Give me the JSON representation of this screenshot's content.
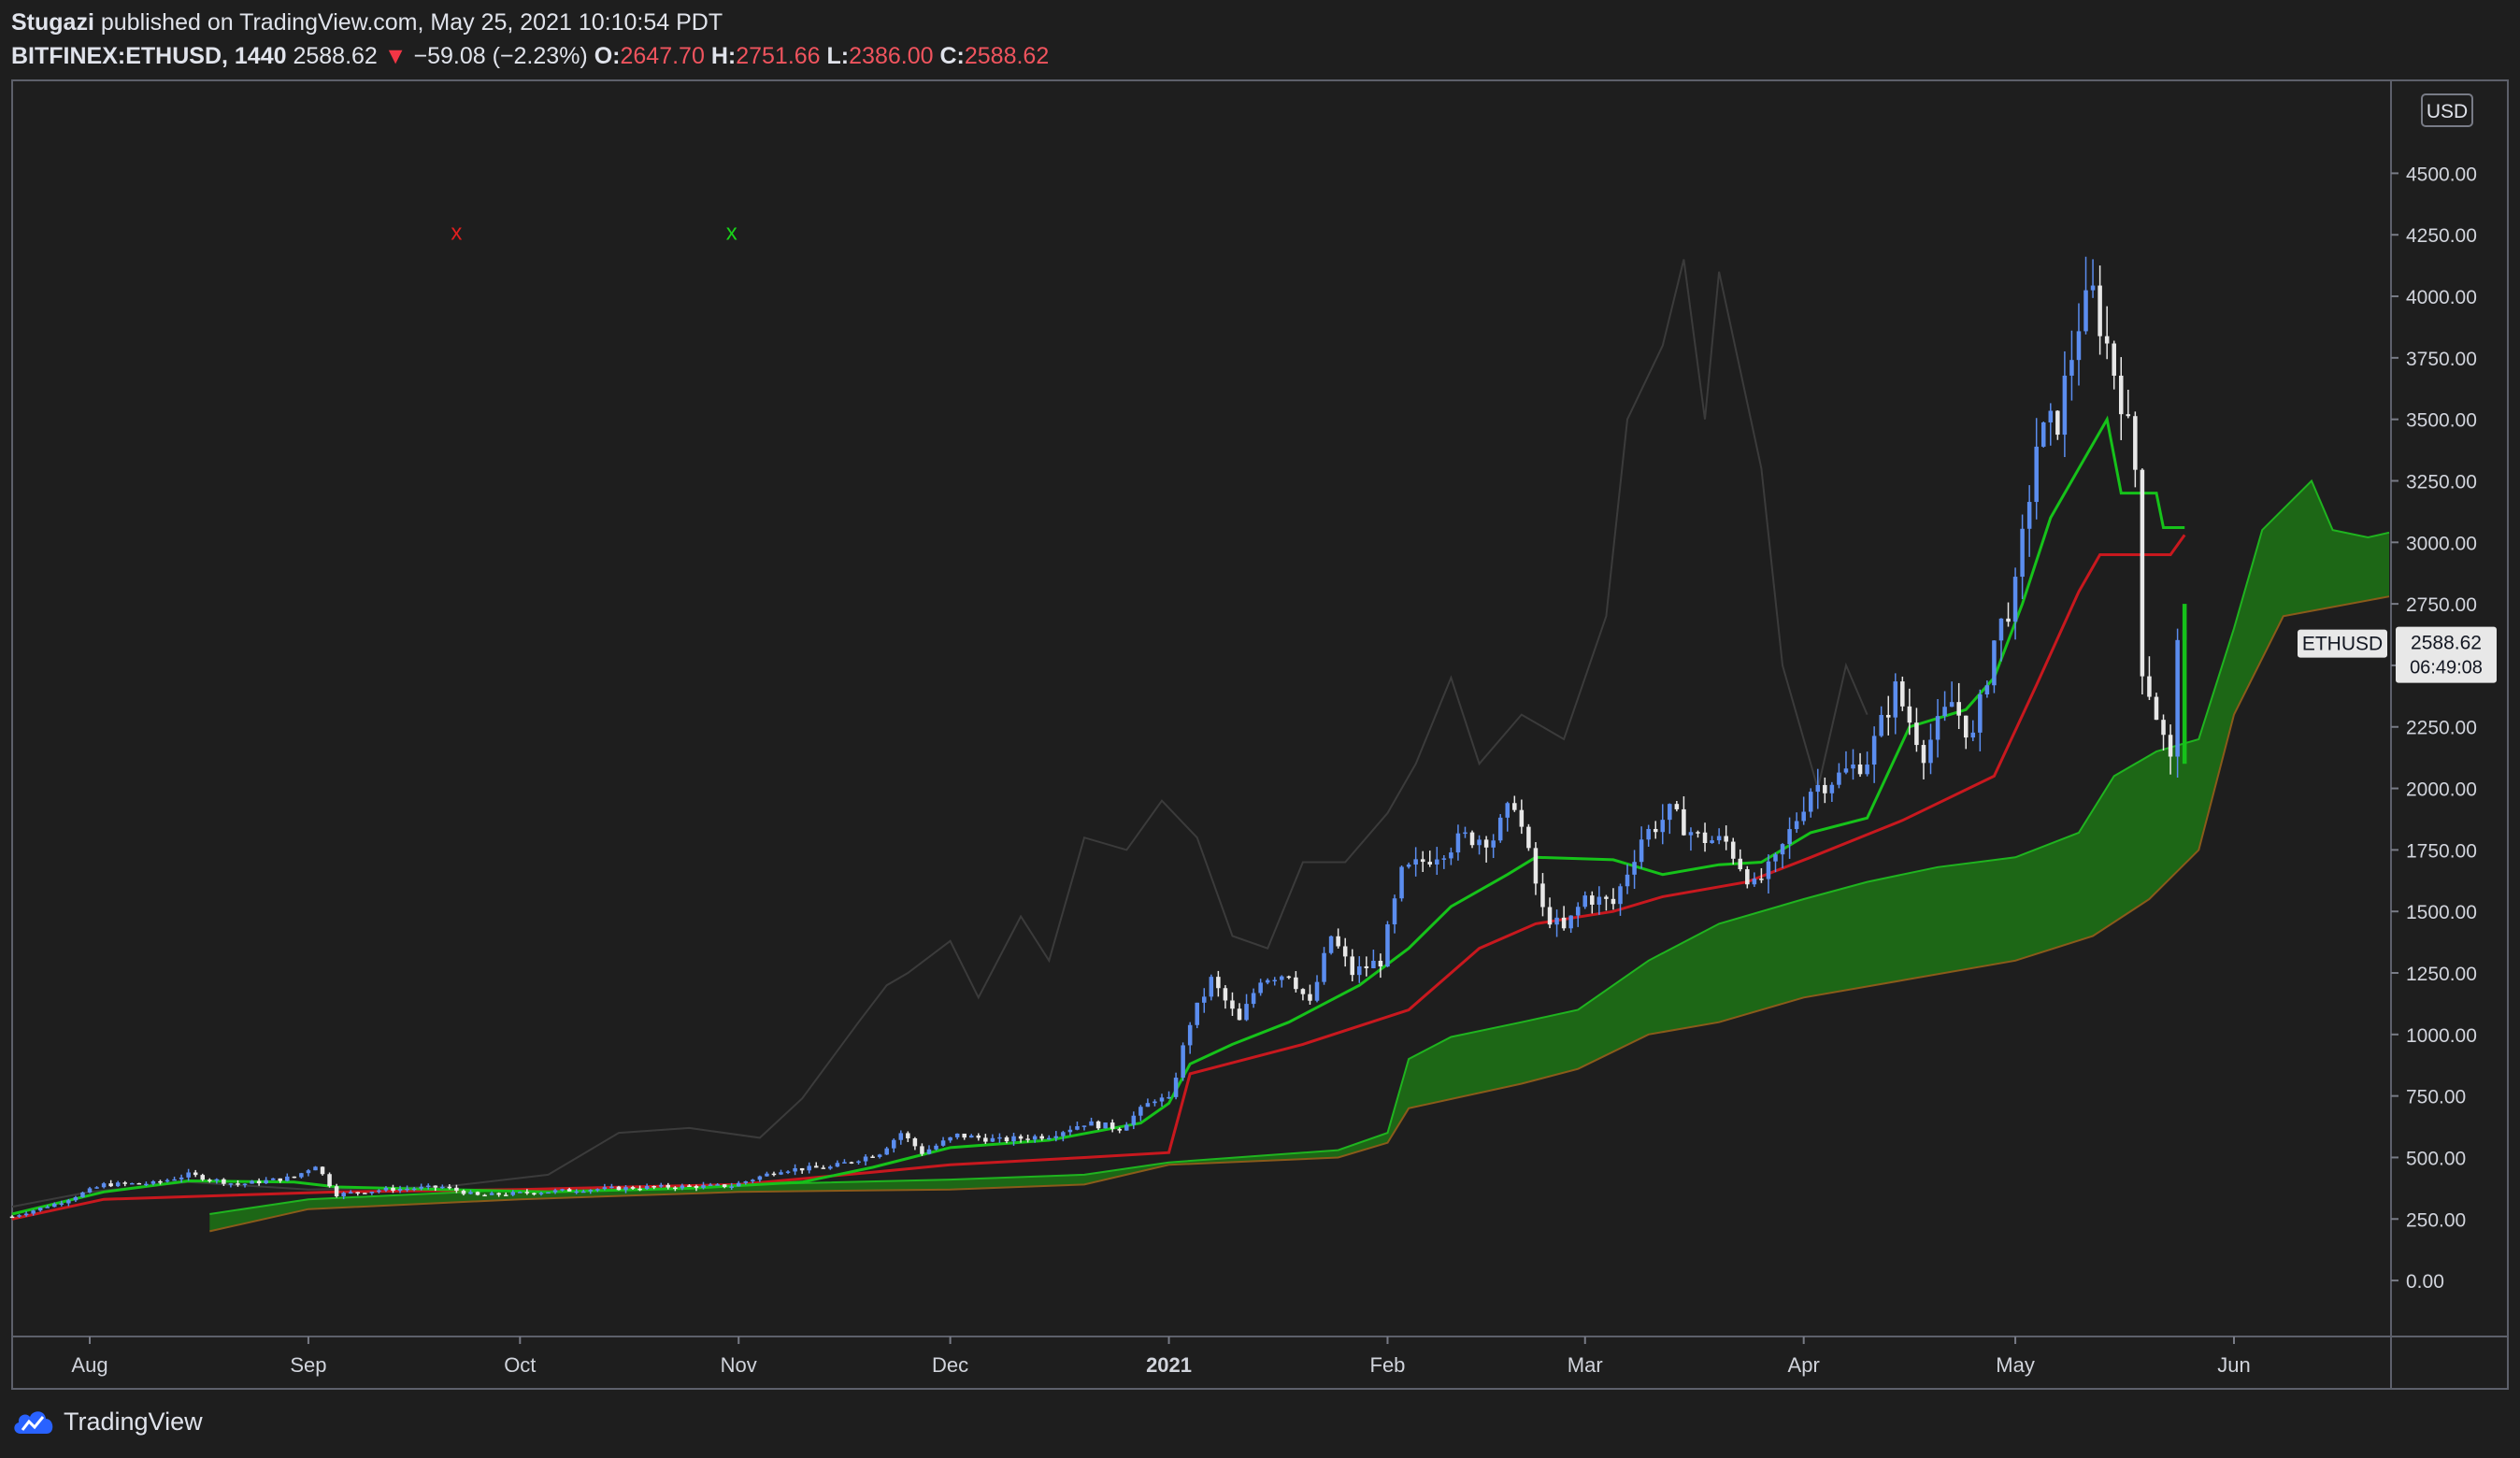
{
  "header": {
    "author": "Stugazi",
    "published_text": "published on TradingView.com, May 25, 2021 10:10:54 PDT",
    "symbol_interval": "BITFINEX:ETHUSD, 1440",
    "last": "2588.62",
    "arrow": "▼",
    "change": "−59.08 (−2.23%)",
    "open_label": "O:",
    "open": "2647.70",
    "high_label": "H:",
    "high": "2751.66",
    "low_label": "L:",
    "low": "2386.00",
    "close_label": "C:",
    "close": "2588.62"
  },
  "footer": {
    "brand": "TradingView"
  },
  "colors": {
    "background": "#1e1e1e",
    "candle_up": "#5b8def",
    "candle_down": "#e8e8e8",
    "tenkan": "#16c21a",
    "kijun": "#c8181e",
    "chikou": "#3b3b3b",
    "cloud_fill": "#1d6b16",
    "span_a": "#1fb41f",
    "span_b": "#8a5a1a",
    "marker_red": "#e01f1f",
    "marker_green": "#18d318"
  },
  "chart_data": {
    "type": "candlestick",
    "currency_badge": "USD",
    "price_label": "2588.62",
    "countdown": "06:49:08",
    "symbol_tag": "ETHUSD",
    "yticks": [
      0,
      250,
      500,
      750,
      1000,
      1250,
      1500,
      1750,
      2000,
      2250,
      2500,
      2750,
      3000,
      3250,
      3500,
      3750,
      4000,
      4250,
      4500
    ],
    "ytick_labels": [
      "0.00",
      "250.00",
      "500.00",
      "750.00",
      "1000.00",
      "1250.00",
      "1500.00",
      "1750.00",
      "2000.00",
      "2250.00",
      "2500.00",
      "2750.00",
      "3000.00",
      "3250.00",
      "3500.00",
      "3750.00",
      "4000.00",
      "4250.00",
      "4500.00"
    ],
    "ylim": [
      -220,
      4870
    ],
    "x_start": "2020-07-21",
    "x_end": "2021-06-23",
    "xticks": [
      {
        "date": "2020-08-01",
        "label": "Aug",
        "bold": false
      },
      {
        "date": "2020-09-01",
        "label": "Sep",
        "bold": false
      },
      {
        "date": "2020-10-01",
        "label": "Oct",
        "bold": false
      },
      {
        "date": "2020-11-01",
        "label": "Nov",
        "bold": false
      },
      {
        "date": "2020-12-01",
        "label": "Dec",
        "bold": false
      },
      {
        "date": "2021-01-01",
        "label": "2021",
        "bold": true
      },
      {
        "date": "2021-02-01",
        "label": "Feb",
        "bold": false
      },
      {
        "date": "2021-03-01",
        "label": "Mar",
        "bold": false
      },
      {
        "date": "2021-04-01",
        "label": "Apr",
        "bold": false
      },
      {
        "date": "2021-05-01",
        "label": "May",
        "bold": false
      },
      {
        "date": "2021-06-01",
        "label": "Jun",
        "bold": false
      }
    ],
    "markers": [
      {
        "date": "2020-09-22",
        "price": 4230,
        "glyph": "x",
        "color": "red"
      },
      {
        "date": "2020-10-31",
        "price": 4230,
        "glyph": "x",
        "color": "green"
      }
    ],
    "close_path": [
      [
        "2020-07-21",
        260
      ],
      [
        "2020-07-28",
        320
      ],
      [
        "2020-08-03",
        390
      ],
      [
        "2020-08-10",
        395
      ],
      [
        "2020-08-15",
        430
      ],
      [
        "2020-08-22",
        390
      ],
      [
        "2020-08-30",
        420
      ],
      [
        "2020-09-02",
        470
      ],
      [
        "2020-09-05",
        350
      ],
      [
        "2020-09-12",
        370
      ],
      [
        "2020-09-20",
        380
      ],
      [
        "2020-09-25",
        345
      ],
      [
        "2020-10-01",
        355
      ],
      [
        "2020-10-10",
        370
      ],
      [
        "2020-10-20",
        380
      ],
      [
        "2020-10-31",
        385
      ],
      [
        "2020-11-07",
        450
      ],
      [
        "2020-11-14",
        460
      ],
      [
        "2020-11-21",
        520
      ],
      [
        "2020-11-24",
        600
      ],
      [
        "2020-11-27",
        520
      ],
      [
        "2020-12-02",
        590
      ],
      [
        "2020-12-08",
        570
      ],
      [
        "2020-12-15",
        590
      ],
      [
        "2020-12-20",
        640
      ],
      [
        "2020-12-25",
        620
      ],
      [
        "2020-12-30",
        740
      ],
      [
        "2021-01-01",
        730
      ],
      [
        "2021-01-04",
        1050
      ],
      [
        "2021-01-07",
        1220
      ],
      [
        "2021-01-11",
        1050
      ],
      [
        "2021-01-14",
        1230
      ],
      [
        "2021-01-18",
        1250
      ],
      [
        "2021-01-21",
        1120
      ],
      [
        "2021-01-24",
        1400
      ],
      [
        "2021-01-27",
        1250
      ],
      [
        "2021-01-31",
        1300
      ],
      [
        "2021-02-03",
        1650
      ],
      [
        "2021-02-08",
        1740
      ],
      [
        "2021-02-12",
        1800
      ],
      [
        "2021-02-16",
        1800
      ],
      [
        "2021-02-19",
        1950
      ],
      [
        "2021-02-23",
        1500
      ],
      [
        "2021-02-26",
        1420
      ],
      [
        "2021-03-01",
        1560
      ],
      [
        "2021-03-05",
        1530
      ],
      [
        "2021-03-09",
        1800
      ],
      [
        "2021-03-13",
        1900
      ],
      [
        "2021-03-17",
        1800
      ],
      [
        "2021-03-21",
        1780
      ],
      [
        "2021-03-25",
        1600
      ],
      [
        "2021-03-28",
        1700
      ],
      [
        "2021-04-02",
        2000
      ],
      [
        "2021-04-06",
        2050
      ],
      [
        "2021-04-10",
        2120
      ],
      [
        "2021-04-14",
        2400
      ],
      [
        "2021-04-18",
        2150
      ],
      [
        "2021-04-22",
        2350
      ],
      [
        "2021-04-25",
        2200
      ],
      [
        "2021-04-28",
        2600
      ],
      [
        "2021-05-01",
        2800
      ],
      [
        "2021-05-04",
        3400
      ],
      [
        "2021-05-07",
        3500
      ],
      [
        "2021-05-10",
        3900
      ],
      [
        "2021-05-12",
        4000
      ],
      [
        "2021-05-14",
        3800
      ],
      [
        "2021-05-16",
        3600
      ],
      [
        "2021-05-18",
        3300
      ],
      [
        "2021-05-19",
        2500
      ],
      [
        "2021-05-21",
        2300
      ],
      [
        "2021-05-23",
        2100
      ],
      [
        "2021-05-24",
        2650
      ],
      [
        "2021-05-25",
        2588
      ]
    ],
    "tenkan": [
      [
        "2020-07-21",
        270
      ],
      [
        "2020-08-03",
        360
      ],
      [
        "2020-08-15",
        405
      ],
      [
        "2020-08-30",
        400
      ],
      [
        "2020-09-05",
        380
      ],
      [
        "2020-09-20",
        370
      ],
      [
        "2020-10-05",
        360
      ],
      [
        "2020-10-25",
        375
      ],
      [
        "2020-11-10",
        400
      ],
      [
        "2020-11-20",
        460
      ],
      [
        "2020-12-01",
        540
      ],
      [
        "2020-12-15",
        570
      ],
      [
        "2020-12-28",
        640
      ],
      [
        "2021-01-01",
        720
      ],
      [
        "2021-01-04",
        880
      ],
      [
        "2021-01-10",
        960
      ],
      [
        "2021-01-18",
        1050
      ],
      [
        "2021-01-28",
        1200
      ],
      [
        "2021-02-04",
        1350
      ],
      [
        "2021-02-10",
        1520
      ],
      [
        "2021-02-18",
        1650
      ],
      [
        "2021-02-22",
        1720
      ],
      [
        "2021-03-05",
        1710
      ],
      [
        "2021-03-12",
        1650
      ],
      [
        "2021-03-20",
        1690
      ],
      [
        "2021-03-26",
        1700
      ],
      [
        "2021-04-02",
        1820
      ],
      [
        "2021-04-10",
        1880
      ],
      [
        "2021-04-16",
        2250
      ],
      [
        "2021-04-24",
        2320
      ],
      [
        "2021-04-28",
        2450
      ],
      [
        "2021-05-02",
        2750
      ],
      [
        "2021-05-06",
        3100
      ],
      [
        "2021-05-10",
        3300
      ],
      [
        "2021-05-14",
        3500
      ],
      [
        "2021-05-16",
        3200
      ],
      [
        "2021-05-21",
        3200
      ],
      [
        "2021-05-22",
        3060
      ],
      [
        "2021-05-25",
        3060
      ]
    ],
    "kijun": [
      [
        "2020-07-21",
        250
      ],
      [
        "2020-08-03",
        330
      ],
      [
        "2020-09-05",
        360
      ],
      [
        "2020-10-01",
        370
      ],
      [
        "2020-11-01",
        390
      ],
      [
        "2020-11-20",
        440
      ],
      [
        "2020-12-01",
        470
      ],
      [
        "2020-12-20",
        500
      ],
      [
        "2021-01-01",
        520
      ],
      [
        "2021-01-04",
        840
      ],
      [
        "2021-01-20",
        960
      ],
      [
        "2021-02-04",
        1100
      ],
      [
        "2021-02-14",
        1350
      ],
      [
        "2021-02-22",
        1450
      ],
      [
        "2021-03-05",
        1500
      ],
      [
        "2021-03-12",
        1560
      ],
      [
        "2021-03-24",
        1620
      ],
      [
        "2021-04-02",
        1720
      ],
      [
        "2021-04-15",
        1870
      ],
      [
        "2021-04-28",
        2050
      ],
      [
        "2021-05-04",
        2420
      ],
      [
        "2021-05-10",
        2800
      ],
      [
        "2021-05-13",
        2950
      ],
      [
        "2021-05-23",
        2950
      ],
      [
        "2021-05-25",
        3030
      ]
    ],
    "span_a": [
      [
        "2020-08-18",
        270
      ],
      [
        "2020-09-01",
        330
      ],
      [
        "2020-10-01",
        370
      ],
      [
        "2020-11-01",
        390
      ],
      [
        "2020-12-01",
        410
      ],
      [
        "2020-12-20",
        430
      ],
      [
        "2021-01-01",
        480
      ],
      [
        "2021-01-25",
        530
      ],
      [
        "2021-02-01",
        600
      ],
      [
        "2021-02-04",
        900
      ],
      [
        "2021-02-10",
        990
      ],
      [
        "2021-02-20",
        1050
      ],
      [
        "2021-02-28",
        1100
      ],
      [
        "2021-03-10",
        1300
      ],
      [
        "2021-03-20",
        1450
      ],
      [
        "2021-04-01",
        1550
      ],
      [
        "2021-04-10",
        1620
      ],
      [
        "2021-04-20",
        1680
      ],
      [
        "2021-05-01",
        1720
      ],
      [
        "2021-05-10",
        1820
      ],
      [
        "2021-05-15",
        2050
      ],
      [
        "2021-05-21",
        2150
      ],
      [
        "2021-05-27",
        2200
      ],
      [
        "2021-06-01",
        2650
      ],
      [
        "2021-06-05",
        3050
      ],
      [
        "2021-06-12",
        3250
      ],
      [
        "2021-06-15",
        3050
      ],
      [
        "2021-06-20",
        3020
      ],
      [
        "2021-06-23",
        3040
      ]
    ],
    "span_b": [
      [
        "2020-08-18",
        200
      ],
      [
        "2020-09-01",
        290
      ],
      [
        "2020-10-01",
        330
      ],
      [
        "2020-11-01",
        360
      ],
      [
        "2020-12-01",
        370
      ],
      [
        "2020-12-20",
        390
      ],
      [
        "2021-01-01",
        470
      ],
      [
        "2021-01-25",
        500
      ],
      [
        "2021-02-01",
        560
      ],
      [
        "2021-02-04",
        700
      ],
      [
        "2021-02-20",
        800
      ],
      [
        "2021-02-28",
        860
      ],
      [
        "2021-03-10",
        1000
      ],
      [
        "2021-03-20",
        1050
      ],
      [
        "2021-04-01",
        1150
      ],
      [
        "2021-04-15",
        1220
      ],
      [
        "2021-05-01",
        1300
      ],
      [
        "2021-05-12",
        1400
      ],
      [
        "2021-05-20",
        1550
      ],
      [
        "2021-05-27",
        1750
      ],
      [
        "2021-06-01",
        2300
      ],
      [
        "2021-06-08",
        2700
      ],
      [
        "2021-06-23",
        2780
      ]
    ],
    "chikou": [
      [
        "2020-07-21",
        300
      ],
      [
        "2020-08-01",
        360
      ],
      [
        "2020-08-15",
        400
      ],
      [
        "2020-09-01",
        370
      ],
      [
        "2020-09-20",
        380
      ],
      [
        "2020-10-05",
        430
      ],
      [
        "2020-10-15",
        600
      ],
      [
        "2020-10-25",
        620
      ],
      [
        "2020-11-04",
        580
      ],
      [
        "2020-11-10",
        740
      ],
      [
        "2020-11-18",
        1050
      ],
      [
        "2020-11-22",
        1200
      ],
      [
        "2020-11-25",
        1250
      ],
      [
        "2020-12-01",
        1380
      ],
      [
        "2020-12-05",
        1150
      ],
      [
        "2020-12-11",
        1480
      ],
      [
        "2020-12-15",
        1300
      ],
      [
        "2020-12-20",
        1800
      ],
      [
        "2020-12-26",
        1750
      ],
      [
        "2020-12-31",
        1950
      ],
      [
        "2021-01-05",
        1800
      ],
      [
        "2021-01-10",
        1400
      ],
      [
        "2021-01-15",
        1350
      ],
      [
        "2021-01-20",
        1700
      ],
      [
        "2021-01-26",
        1700
      ],
      [
        "2021-02-01",
        1900
      ],
      [
        "2021-02-05",
        2100
      ],
      [
        "2021-02-10",
        2450
      ],
      [
        "2021-02-14",
        2100
      ],
      [
        "2021-02-20",
        2300
      ],
      [
        "2021-02-26",
        2200
      ],
      [
        "2021-03-04",
        2700
      ],
      [
        "2021-03-07",
        3500
      ],
      [
        "2021-03-12",
        3800
      ],
      [
        "2021-03-15",
        4150
      ],
      [
        "2021-03-18",
        3500
      ],
      [
        "2021-03-20",
        4100
      ],
      [
        "2021-03-26",
        3300
      ],
      [
        "2021-03-29",
        2500
      ],
      [
        "2021-04-03",
        2000
      ],
      [
        "2021-04-07",
        2500
      ],
      [
        "2021-04-10",
        2300
      ]
    ]
  }
}
